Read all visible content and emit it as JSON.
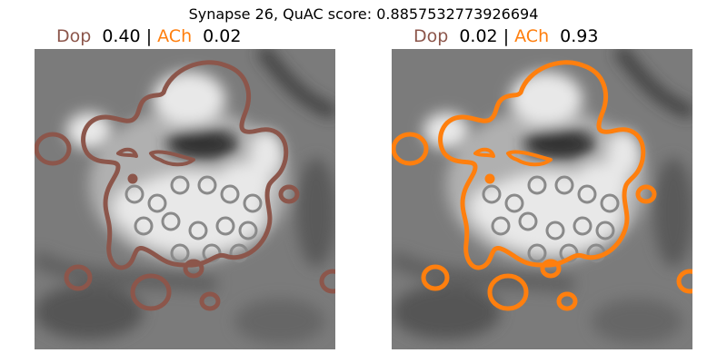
{
  "title": "Synapse 26, QuAC score: 0.8857532773926694",
  "colors": {
    "dop": "#8c564b",
    "ach": "#ff7f0e"
  },
  "panels": [
    {
      "dop_label": "Dop",
      "dop_value": "0.40",
      "separator": "|",
      "ach_label": "ACh",
      "ach_value": "0.02",
      "contour_color": "#8c564b"
    },
    {
      "dop_label": "Dop",
      "dop_value": "0.02",
      "separator": "|",
      "ach_label": "ACh",
      "ach_value": "0.93",
      "contour_color": "#ff7f0e"
    }
  ]
}
